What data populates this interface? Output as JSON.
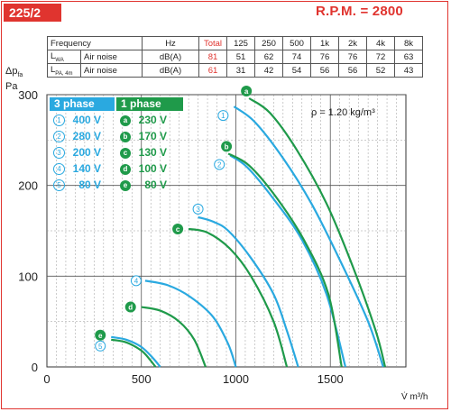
{
  "header": {
    "model": "225/2",
    "rpm": "R.P.M. = 2800"
  },
  "noise_table": {
    "header": [
      "Frequency",
      "Hz",
      "Total",
      "125",
      "250",
      "500",
      "1k",
      "2k",
      "4k",
      "8k"
    ],
    "rows": [
      {
        "symbol": "L",
        "symbol_sub": "WA",
        "desc": "Air noise",
        "unit": "dB(A)",
        "values": [
          "81",
          "51",
          "62",
          "74",
          "76",
          "76",
          "72",
          "63"
        ]
      },
      {
        "symbol": "L",
        "symbol_sub": "PA, 4m",
        "desc": "Air noise",
        "unit": "dB(A)",
        "values": [
          "61",
          "31",
          "42",
          "54",
          "56",
          "56",
          "52",
          "43"
        ]
      }
    ]
  },
  "legend": {
    "three_phase_title": "3 phase",
    "one_phase_title": "1 phase",
    "three_phase": [
      {
        "marker": "1",
        "label": "400 V"
      },
      {
        "marker": "2",
        "label": "280 V"
      },
      {
        "marker": "3",
        "label": "200 V"
      },
      {
        "marker": "4",
        "label": "140 V"
      },
      {
        "marker": "5",
        "label": "80 V"
      }
    ],
    "one_phase": [
      {
        "marker": "a",
        "label": "230 V"
      },
      {
        "marker": "b",
        "label": "170 V"
      },
      {
        "marker": "c",
        "label": "130 V"
      },
      {
        "marker": "d",
        "label": "100 V"
      },
      {
        "marker": "e",
        "label": "80 V"
      }
    ]
  },
  "colors": {
    "accent_red": "#e0342f",
    "three_phase_blue": "#2aa9e0",
    "one_phase_green": "#1f9a4a"
  },
  "chart_data": {
    "type": "line",
    "density_note": "ρ = 1.20 kg/m³",
    "xlabel": "V̇ m³/h",
    "ylabel": "Δp_fa Pa",
    "xlim": [
      0,
      1900
    ],
    "ylim": [
      0,
      300
    ],
    "xticks": [
      0,
      500,
      1000,
      1500
    ],
    "yticks": [
      0,
      100,
      200,
      300
    ],
    "grid": true,
    "series": [
      {
        "name": "1",
        "group": "3 phase",
        "x": [
          990,
          1100,
          1250,
          1400,
          1550,
          1700,
          1780
        ],
        "y": [
          287,
          270,
          230,
          180,
          118,
          50,
          0
        ]
      },
      {
        "name": "2",
        "group": "3 phase",
        "x": [
          970,
          1060,
          1200,
          1350,
          1480,
          1580
        ],
        "y": [
          233,
          220,
          185,
          140,
          80,
          0
        ]
      },
      {
        "name": "3",
        "group": "3 phase",
        "x": [
          800,
          880,
          960,
          1080,
          1200,
          1270,
          1330
        ],
        "y": [
          165,
          160,
          150,
          120,
          80,
          40,
          0
        ]
      },
      {
        "name": "4",
        "group": "3 phase",
        "x": [
          520,
          640,
          760,
          880,
          960,
          1000
        ],
        "y": [
          95,
          90,
          77,
          55,
          25,
          0
        ]
      },
      {
        "name": "5",
        "group": "3 phase",
        "x": [
          340,
          420,
          500,
          560,
          600
        ],
        "y": [
          33,
          30,
          22,
          10,
          0
        ]
      },
      {
        "name": "a",
        "group": "1 phase",
        "x": [
          1070,
          1180,
          1320,
          1480,
          1620,
          1740,
          1790
        ],
        "y": [
          296,
          280,
          240,
          180,
          110,
          40,
          0
        ]
      },
      {
        "name": "b",
        "group": "1 phase",
        "x": [
          960,
          1070,
          1210,
          1360,
          1490,
          1560
        ],
        "y": [
          235,
          222,
          188,
          140,
          80,
          0
        ]
      },
      {
        "name": "c",
        "group": "1 phase",
        "x": [
          750,
          850,
          970,
          1080,
          1200,
          1270
        ],
        "y": [
          152,
          148,
          130,
          100,
          50,
          0
        ]
      },
      {
        "name": "d",
        "group": "1 phase",
        "x": [
          500,
          600,
          700,
          780,
          840
        ],
        "y": [
          66,
          62,
          50,
          30,
          0
        ]
      },
      {
        "name": "e",
        "group": "1 phase",
        "x": [
          340,
          420,
          500,
          545,
          575
        ],
        "y": [
          30,
          27,
          18,
          8,
          0
        ]
      }
    ]
  }
}
